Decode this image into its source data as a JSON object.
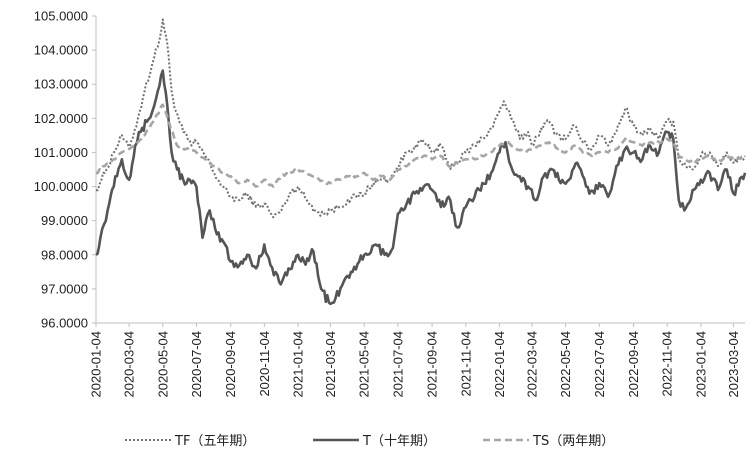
{
  "chart_data": {
    "type": "line",
    "title": "",
    "xlabel": "",
    "ylabel": "",
    "ylim": [
      96.0,
      105.0
    ],
    "y_ticks": [
      "96.0000",
      "97.0000",
      "98.0000",
      "99.0000",
      "100.0000",
      "101.0000",
      "102.0000",
      "103.0000",
      "104.0000",
      "105.0000"
    ],
    "x_ticks": [
      "2020-01-04",
      "2020-03-04",
      "2020-05-04",
      "2020-07-04",
      "2020-09-04",
      "2020-11-04",
      "2021-01-04",
      "2021-03-04",
      "2021-05-04",
      "2021-07-04",
      "2021-09-04",
      "2021-11-04",
      "2022-01-04",
      "2022-03-04",
      "2022-05-04",
      "2022-07-04",
      "2022-09-04",
      "2022-11-04",
      "2023-01-04",
      "2023-03-04"
    ],
    "x_range": [
      "2020-01-04",
      "2023-03-25"
    ],
    "grid": false,
    "legend_position": "bottom",
    "series": [
      {
        "name": "TF（五年期）",
        "style": "dotted",
        "color": "#707070",
        "points": [
          [
            "2020-01-04",
            99.9
          ],
          [
            "2020-01-20",
            100.4
          ],
          [
            "2020-02-05",
            101.0
          ],
          [
            "2020-02-20",
            101.5
          ],
          [
            "2020-03-04",
            101.1
          ],
          [
            "2020-03-20",
            102.0
          ],
          [
            "2020-04-01",
            102.8
          ],
          [
            "2020-04-15",
            103.6
          ],
          [
            "2020-04-28",
            104.3
          ],
          [
            "2020-05-04",
            104.9
          ],
          [
            "2020-05-12",
            104.2
          ],
          [
            "2020-05-20",
            102.8
          ],
          [
            "2020-05-28",
            102.2
          ],
          [
            "2020-06-10",
            101.6
          ],
          [
            "2020-06-25",
            101.2
          ],
          [
            "2020-07-04",
            101.3
          ],
          [
            "2020-07-20",
            100.9
          ],
          [
            "2020-08-05",
            100.4
          ],
          [
            "2020-08-20",
            100.0
          ],
          [
            "2020-09-04",
            99.7
          ],
          [
            "2020-09-20",
            99.6
          ],
          [
            "2020-10-04",
            99.8
          ],
          [
            "2020-10-20",
            99.4
          ],
          [
            "2020-11-04",
            99.5
          ],
          [
            "2020-11-20",
            99.1
          ],
          [
            "2020-12-05",
            99.3
          ],
          [
            "2020-12-20",
            99.8
          ],
          [
            "2021-01-04",
            100.0
          ],
          [
            "2021-01-20",
            99.6
          ],
          [
            "2021-02-04",
            99.3
          ],
          [
            "2021-02-20",
            99.2
          ],
          [
            "2021-03-04",
            99.3
          ],
          [
            "2021-03-20",
            99.4
          ],
          [
            "2021-04-04",
            99.6
          ],
          [
            "2021-04-20",
            99.7
          ],
          [
            "2021-05-04",
            99.8
          ],
          [
            "2021-05-20",
            100.1
          ],
          [
            "2021-06-04",
            100.2
          ],
          [
            "2021-06-20",
            100.2
          ],
          [
            "2021-07-04",
            100.6
          ],
          [
            "2021-07-20",
            101.0
          ],
          [
            "2021-08-04",
            101.2
          ],
          [
            "2021-08-20",
            101.3
          ],
          [
            "2021-09-04",
            101.0
          ],
          [
            "2021-09-20",
            101.2
          ],
          [
            "2021-10-04",
            100.6
          ],
          [
            "2021-10-20",
            100.7
          ],
          [
            "2021-11-04",
            101.0
          ],
          [
            "2021-11-20",
            101.2
          ],
          [
            "2021-12-04",
            101.4
          ],
          [
            "2021-12-20",
            101.7
          ],
          [
            "2022-01-04",
            102.2
          ],
          [
            "2022-01-12",
            102.5
          ],
          [
            "2022-01-25",
            102.0
          ],
          [
            "2022-02-10",
            101.4
          ],
          [
            "2022-02-25",
            101.6
          ],
          [
            "2022-03-04",
            101.2
          ],
          [
            "2022-03-20",
            101.7
          ],
          [
            "2022-04-04",
            101.9
          ],
          [
            "2022-04-20",
            101.5
          ],
          [
            "2022-05-04",
            101.4
          ],
          [
            "2022-05-20",
            101.8
          ],
          [
            "2022-06-04",
            101.3
          ],
          [
            "2022-06-20",
            101.1
          ],
          [
            "2022-07-04",
            101.5
          ],
          [
            "2022-07-20",
            101.2
          ],
          [
            "2022-08-04",
            101.6
          ],
          [
            "2022-08-20",
            102.3
          ],
          [
            "2022-09-04",
            101.8
          ],
          [
            "2022-09-20",
            101.5
          ],
          [
            "2022-10-04",
            101.7
          ],
          [
            "2022-10-20",
            101.4
          ],
          [
            "2022-11-04",
            101.9
          ],
          [
            "2022-11-15",
            101.9
          ],
          [
            "2022-11-25",
            100.8
          ],
          [
            "2022-12-05",
            100.7
          ],
          [
            "2022-12-20",
            100.5
          ],
          [
            "2023-01-04",
            100.9
          ],
          [
            "2023-01-20",
            101.0
          ],
          [
            "2023-02-04",
            100.6
          ],
          [
            "2023-02-20",
            101.0
          ],
          [
            "2023-03-04",
            100.7
          ],
          [
            "2023-03-25",
            100.9
          ]
        ]
      },
      {
        "name": "T（十年期）",
        "style": "solid",
        "color": "#555555",
        "points": [
          [
            "2020-01-04",
            98.0
          ],
          [
            "2020-01-12",
            98.5
          ],
          [
            "2020-01-25",
            99.3
          ],
          [
            "2020-02-08",
            100.3
          ],
          [
            "2020-02-20",
            100.8
          ],
          [
            "2020-03-04",
            100.2
          ],
          [
            "2020-03-15",
            101.2
          ],
          [
            "2020-03-25",
            101.6
          ],
          [
            "2020-04-05",
            101.9
          ],
          [
            "2020-04-15",
            102.2
          ],
          [
            "2020-04-25",
            102.8
          ],
          [
            "2020-05-04",
            103.4
          ],
          [
            "2020-05-12",
            102.4
          ],
          [
            "2020-05-20",
            101.0
          ],
          [
            "2020-05-30",
            100.5
          ],
          [
            "2020-06-10",
            100.2
          ],
          [
            "2020-06-25",
            100.1
          ],
          [
            "2020-07-04",
            100.0
          ],
          [
            "2020-07-15",
            98.5
          ],
          [
            "2020-07-28",
            99.3
          ],
          [
            "2020-08-10",
            98.6
          ],
          [
            "2020-08-25",
            98.3
          ],
          [
            "2020-09-04",
            97.8
          ],
          [
            "2020-09-20",
            97.7
          ],
          [
            "2020-10-04",
            98.0
          ],
          [
            "2020-10-20",
            97.6
          ],
          [
            "2020-11-04",
            98.3
          ],
          [
            "2020-11-15",
            97.7
          ],
          [
            "2020-12-01",
            97.2
          ],
          [
            "2020-12-15",
            97.4
          ],
          [
            "2021-01-04",
            98.0
          ],
          [
            "2021-01-15",
            97.8
          ],
          [
            "2021-02-01",
            98.1
          ],
          [
            "2021-02-15",
            97.0
          ],
          [
            "2021-03-01",
            96.6
          ],
          [
            "2021-03-10",
            96.6
          ],
          [
            "2021-03-25",
            97.1
          ],
          [
            "2021-04-10",
            97.5
          ],
          [
            "2021-04-25",
            97.8
          ],
          [
            "2021-05-10",
            98.0
          ],
          [
            "2021-05-25",
            98.3
          ],
          [
            "2021-06-10",
            98.0
          ],
          [
            "2021-06-25",
            98.2
          ],
          [
            "2021-07-04",
            99.2
          ],
          [
            "2021-07-20",
            99.5
          ],
          [
            "2021-08-04",
            99.8
          ],
          [
            "2021-08-20",
            100.0
          ],
          [
            "2021-09-04",
            99.9
          ],
          [
            "2021-09-20",
            99.4
          ],
          [
            "2021-10-04",
            99.7
          ],
          [
            "2021-10-20",
            98.8
          ],
          [
            "2021-11-04",
            99.4
          ],
          [
            "2021-11-20",
            99.7
          ],
          [
            "2021-12-04",
            100.1
          ],
          [
            "2021-12-20",
            100.4
          ],
          [
            "2022-01-04",
            101.0
          ],
          [
            "2022-01-15",
            101.3
          ],
          [
            "2022-01-25",
            100.6
          ],
          [
            "2022-02-10",
            100.3
          ],
          [
            "2022-02-25",
            100.0
          ],
          [
            "2022-03-10",
            99.6
          ],
          [
            "2022-03-25",
            100.3
          ],
          [
            "2022-04-10",
            100.5
          ],
          [
            "2022-04-25",
            100.1
          ],
          [
            "2022-05-10",
            100.2
          ],
          [
            "2022-05-25",
            100.7
          ],
          [
            "2022-06-10",
            100.0
          ],
          [
            "2022-06-25",
            99.8
          ],
          [
            "2022-07-04",
            100.1
          ],
          [
            "2022-07-20",
            99.7
          ],
          [
            "2022-08-04",
            100.6
          ],
          [
            "2022-08-20",
            101.1
          ],
          [
            "2022-09-04",
            101.0
          ],
          [
            "2022-09-20",
            100.8
          ],
          [
            "2022-10-04",
            101.2
          ],
          [
            "2022-10-20",
            101.0
          ],
          [
            "2022-11-04",
            101.6
          ],
          [
            "2022-11-15",
            101.4
          ],
          [
            "2022-11-25",
            99.6
          ],
          [
            "2022-12-05",
            99.3
          ],
          [
            "2022-12-20",
            99.9
          ],
          [
            "2023-01-04",
            100.2
          ],
          [
            "2023-01-20",
            100.4
          ],
          [
            "2023-02-04",
            99.9
          ],
          [
            "2023-02-20",
            100.5
          ],
          [
            "2023-03-04",
            99.8
          ],
          [
            "2023-03-25",
            100.4
          ]
        ]
      },
      {
        "name": "TS（两年期）",
        "style": "dashed",
        "color": "#a6a6a6",
        "points": [
          [
            "2020-01-04",
            100.4
          ],
          [
            "2020-01-20",
            100.6
          ],
          [
            "2020-02-05",
            100.8
          ],
          [
            "2020-02-20",
            101.0
          ],
          [
            "2020-03-04",
            101.1
          ],
          [
            "2020-03-20",
            101.3
          ],
          [
            "2020-04-04",
            101.6
          ],
          [
            "2020-04-20",
            102.0
          ],
          [
            "2020-05-04",
            102.4
          ],
          [
            "2020-05-15",
            101.9
          ],
          [
            "2020-05-30",
            101.2
          ],
          [
            "2020-06-15",
            101.1
          ],
          [
            "2020-07-04",
            101.0
          ],
          [
            "2020-07-20",
            100.8
          ],
          [
            "2020-08-05",
            100.6
          ],
          [
            "2020-08-20",
            100.4
          ],
          [
            "2020-09-04",
            100.3
          ],
          [
            "2020-09-20",
            100.1
          ],
          [
            "2020-10-04",
            100.2
          ],
          [
            "2020-10-20",
            100.0
          ],
          [
            "2020-11-04",
            100.2
          ],
          [
            "2020-11-20",
            100.0
          ],
          [
            "2020-12-05",
            100.3
          ],
          [
            "2020-12-20",
            100.4
          ],
          [
            "2021-01-04",
            100.5
          ],
          [
            "2021-01-20",
            100.4
          ],
          [
            "2021-02-04",
            100.3
          ],
          [
            "2021-02-20",
            100.1
          ],
          [
            "2021-03-04",
            100.1
          ],
          [
            "2021-03-20",
            100.2
          ],
          [
            "2021-04-04",
            100.3
          ],
          [
            "2021-04-20",
            100.3
          ],
          [
            "2021-05-04",
            100.4
          ],
          [
            "2021-05-20",
            100.2
          ],
          [
            "2021-06-04",
            100.3
          ],
          [
            "2021-06-20",
            100.2
          ],
          [
            "2021-07-04",
            100.5
          ],
          [
            "2021-07-20",
            100.6
          ],
          [
            "2021-08-04",
            100.8
          ],
          [
            "2021-08-20",
            100.9
          ],
          [
            "2021-09-04",
            100.8
          ],
          [
            "2021-09-20",
            100.9
          ],
          [
            "2021-10-04",
            100.6
          ],
          [
            "2021-10-20",
            100.7
          ],
          [
            "2021-11-04",
            100.8
          ],
          [
            "2021-11-20",
            100.8
          ],
          [
            "2021-12-04",
            100.9
          ],
          [
            "2021-12-20",
            101.0
          ],
          [
            "2022-01-04",
            101.2
          ],
          [
            "2022-01-20",
            101.3
          ],
          [
            "2022-02-04",
            101.1
          ],
          [
            "2022-02-20",
            101.0
          ],
          [
            "2022-03-04",
            101.1
          ],
          [
            "2022-03-20",
            101.2
          ],
          [
            "2022-04-04",
            101.3
          ],
          [
            "2022-04-20",
            101.1
          ],
          [
            "2022-05-04",
            101.0
          ],
          [
            "2022-05-20",
            101.2
          ],
          [
            "2022-06-04",
            101.0
          ],
          [
            "2022-06-20",
            100.9
          ],
          [
            "2022-07-04",
            101.0
          ],
          [
            "2022-07-20",
            101.0
          ],
          [
            "2022-08-04",
            101.1
          ],
          [
            "2022-08-20",
            101.4
          ],
          [
            "2022-09-04",
            101.3
          ],
          [
            "2022-09-20",
            101.2
          ],
          [
            "2022-10-04",
            101.3
          ],
          [
            "2022-10-20",
            101.3
          ],
          [
            "2022-11-04",
            101.4
          ],
          [
            "2022-11-15",
            101.3
          ],
          [
            "2022-11-25",
            100.9
          ],
          [
            "2022-12-05",
            100.8
          ],
          [
            "2022-12-20",
            100.7
          ],
          [
            "2023-01-04",
            100.8
          ],
          [
            "2023-01-20",
            100.9
          ],
          [
            "2023-02-04",
            100.7
          ],
          [
            "2023-02-20",
            100.9
          ],
          [
            "2023-03-04",
            100.8
          ],
          [
            "2023-03-25",
            100.9
          ]
        ]
      }
    ]
  }
}
